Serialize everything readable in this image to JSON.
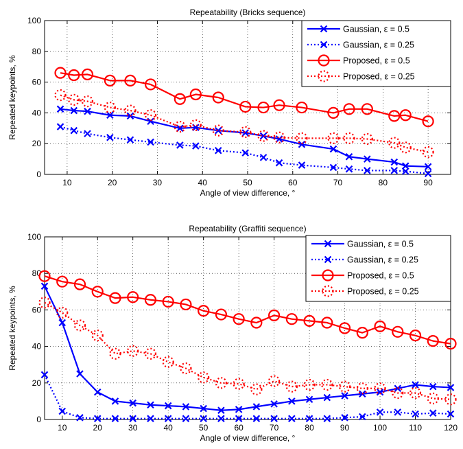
{
  "chart_data": [
    {
      "type": "line",
      "title": "Repeatability (Bricks sequence)",
      "xlabel": "Angle of view difference, °",
      "ylabel": "Repeated keypoints, %",
      "xlim": [
        5,
        95
      ],
      "ylim": [
        0,
        100
      ],
      "xticks": [
        10,
        20,
        30,
        40,
        50,
        60,
        70,
        80,
        90
      ],
      "yticks": [
        0,
        20,
        40,
        60,
        80,
        100
      ],
      "grid": true,
      "legend_position": "top-right",
      "series": [
        {
          "name": "Gaussian, ε = 0.5",
          "color": "#0000ff",
          "linestyle": "solid",
          "marker": "x",
          "x": [
            8.5,
            11.5,
            14.5,
            19.5,
            24,
            28.5,
            35,
            38.5,
            43.5,
            49.5,
            53.5,
            57,
            62,
            69,
            72.5,
            76.5,
            82.5,
            85,
            90
          ],
          "y": [
            42.5,
            41.5,
            41,
            38.5,
            38,
            34.5,
            30,
            30.5,
            28.5,
            27,
            25,
            23,
            19.5,
            16.5,
            11.5,
            10,
            8,
            5.5,
            5
          ]
        },
        {
          "name": "Gaussian, ε = 0.25",
          "color": "#0000ff",
          "linestyle": "dotted",
          "marker": "x",
          "x": [
            8.5,
            11.5,
            14.5,
            19.5,
            24,
            28.5,
            35,
            38.5,
            43.5,
            49.5,
            53.5,
            57,
            62,
            69,
            72.5,
            76.5,
            82.5,
            85,
            90
          ],
          "y": [
            31,
            28.5,
            26.5,
            24,
            22.5,
            21,
            19,
            18.5,
            15.5,
            14,
            11,
            7.5,
            6,
            4.5,
            3.5,
            2.5,
            2.5,
            2,
            0.5
          ]
        },
        {
          "name": "Proposed, ε = 0.5",
          "color": "#ff0000",
          "linestyle": "solid",
          "marker": "o",
          "x": [
            8.5,
            11.5,
            14.5,
            19.5,
            24,
            28.5,
            35,
            38.5,
            43.5,
            49.5,
            53.5,
            57,
            62,
            69,
            72.5,
            76.5,
            82.5,
            85,
            90
          ],
          "y": [
            66,
            64.5,
            65,
            61,
            61,
            58.5,
            49,
            52,
            50,
            44,
            43.5,
            45,
            43.5,
            40,
            42.5,
            42.5,
            38,
            38.5,
            34.5
          ]
        },
        {
          "name": "Proposed, ε = 0.25",
          "color": "#ff0000",
          "linestyle": "dotted",
          "marker": "o",
          "x": [
            8.5,
            11.5,
            14.5,
            19.5,
            24,
            28.5,
            35,
            38.5,
            43.5,
            49.5,
            53.5,
            57,
            62,
            69,
            72.5,
            76.5,
            82.5,
            85,
            90
          ],
          "y": [
            51.5,
            48.5,
            47.5,
            43.5,
            41.5,
            38.5,
            31,
            32,
            28.5,
            27.5,
            25,
            24,
            23.5,
            23.5,
            23.5,
            23,
            20.5,
            17.5,
            14.5
          ]
        }
      ]
    },
    {
      "type": "line",
      "title": "Repeatability (Graffiti sequence)",
      "xlabel": "Angle of view difference, °",
      "ylabel": "Repeated keypoints, %",
      "xlim": [
        5,
        120
      ],
      "ylim": [
        0,
        100
      ],
      "xticks": [
        10,
        20,
        30,
        40,
        50,
        60,
        70,
        80,
        90,
        100,
        110,
        120
      ],
      "yticks": [
        0,
        20,
        40,
        60,
        80,
        100
      ],
      "grid": true,
      "legend_position": "top-right",
      "series": [
        {
          "name": "Gaussian, ε = 0.5",
          "color": "#0000ff",
          "linestyle": "solid",
          "marker": "x",
          "x": [
            5,
            10,
            15,
            20,
            25,
            30,
            35,
            40,
            45,
            50,
            55,
            60,
            65,
            70,
            75,
            80,
            85,
            90,
            95,
            100,
            105,
            110,
            115,
            120
          ],
          "y": [
            73,
            53,
            25,
            15,
            10,
            9,
            8,
            7.5,
            7,
            6,
            5,
            5.5,
            7,
            8.5,
            10,
            11,
            12,
            13,
            14,
            15,
            17,
            19,
            18,
            17.5
          ]
        },
        {
          "name": "Gaussian, ε = 0.25",
          "color": "#0000ff",
          "linestyle": "dotted",
          "marker": "x",
          "x": [
            5,
            10,
            15,
            20,
            25,
            30,
            35,
            40,
            45,
            50,
            55,
            60,
            65,
            70,
            75,
            80,
            85,
            90,
            95,
            100,
            105,
            110,
            115,
            120
          ],
          "y": [
            24.5,
            4.5,
            1,
            0.5,
            0.5,
            0.5,
            0.5,
            0.5,
            0.5,
            0.5,
            0.5,
            0.5,
            0.5,
            0.5,
            0.5,
            0.5,
            0.5,
            1,
            1.5,
            4,
            4,
            3,
            3.5,
            3
          ]
        },
        {
          "name": "Proposed, ε = 0.5",
          "color": "#ff0000",
          "linestyle": "solid",
          "marker": "o",
          "x": [
            5,
            10,
            15,
            20,
            25,
            30,
            35,
            40,
            45,
            50,
            55,
            60,
            65,
            70,
            75,
            80,
            85,
            90,
            95,
            100,
            105,
            110,
            115,
            120
          ],
          "y": [
            78.5,
            75.5,
            74,
            70,
            66.5,
            67,
            65.5,
            64.5,
            63,
            59.5,
            57.5,
            55,
            53,
            57,
            55,
            54,
            53,
            50,
            47.5,
            51,
            48,
            46,
            43,
            41.5
          ]
        },
        {
          "name": "Proposed, ε = 0.25",
          "color": "#ff0000",
          "linestyle": "dotted",
          "marker": "o",
          "x": [
            5,
            10,
            15,
            20,
            25,
            30,
            35,
            40,
            45,
            50,
            55,
            60,
            65,
            70,
            75,
            80,
            85,
            90,
            95,
            100,
            105,
            110,
            115,
            120
          ],
          "y": [
            64,
            58.5,
            51.5,
            46,
            36,
            37.5,
            36,
            31.5,
            28,
            23,
            20,
            19.5,
            16.5,
            21,
            18,
            19,
            19,
            18,
            17,
            17,
            14.5,
            14.5,
            11.5,
            11
          ]
        }
      ]
    }
  ]
}
